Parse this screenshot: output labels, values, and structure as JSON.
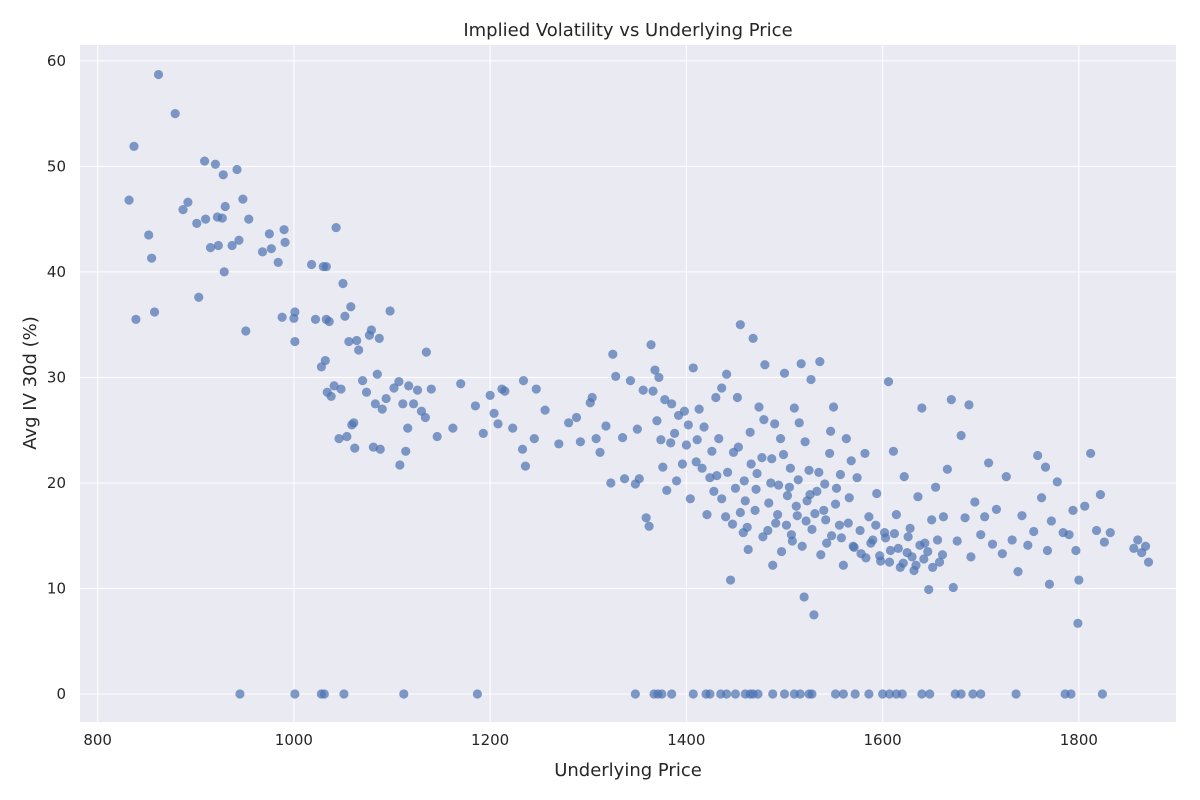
{
  "chart_data": {
    "type": "scatter",
    "title": "Implied Volatility vs Underlying Price",
    "xlabel": "Underlying Price",
    "ylabel": "Avg IV 30d (%)",
    "xlim": [
      782,
      1899
    ],
    "ylim": [
      -2.65,
      61.5
    ],
    "xticks": [
      800,
      1000,
      1200,
      1400,
      1600,
      1800
    ],
    "yticks": [
      0,
      10,
      20,
      30,
      40,
      50,
      60
    ],
    "grid": true,
    "colors": {
      "background": "#eaeaf2",
      "grid": "#ffffff",
      "marker": "#4c72b0"
    },
    "marker_alpha": 0.7,
    "points": [
      [
        832,
        46.8
      ],
      [
        837,
        51.9
      ],
      [
        839,
        35.5
      ],
      [
        852,
        43.5
      ],
      [
        855,
        41.3
      ],
      [
        858,
        36.2
      ],
      [
        862,
        58.7
      ],
      [
        879,
        55.0
      ],
      [
        887,
        45.9
      ],
      [
        892,
        46.6
      ],
      [
        901,
        44.6
      ],
      [
        903,
        37.6
      ],
      [
        909,
        50.5
      ],
      [
        910,
        45.0
      ],
      [
        915,
        42.3
      ],
      [
        920,
        50.2
      ],
      [
        922,
        45.2
      ],
      [
        923,
        42.5
      ],
      [
        927,
        45.1
      ],
      [
        928,
        49.2
      ],
      [
        929,
        40.0
      ],
      [
        930,
        46.2
      ],
      [
        937,
        42.5
      ],
      [
        942,
        49.7
      ],
      [
        944,
        43.0
      ],
      [
        948,
        46.9
      ],
      [
        951,
        34.4
      ],
      [
        954,
        45.0
      ],
      [
        945,
        0
      ],
      [
        968,
        41.9
      ],
      [
        975,
        43.6
      ],
      [
        977,
        42.2
      ],
      [
        984,
        40.9
      ],
      [
        988,
        35.7
      ],
      [
        990,
        44.0
      ],
      [
        991,
        42.8
      ],
      [
        1000,
        35.6
      ],
      [
        1001,
        36.2
      ],
      [
        1001,
        33.4
      ],
      [
        1001,
        0
      ],
      [
        1018,
        40.7
      ],
      [
        1022,
        35.5
      ],
      [
        1028,
        31.0
      ],
      [
        1030,
        40.5
      ],
      [
        1032,
        31.6
      ],
      [
        1033,
        40.5
      ],
      [
        1034,
        28.6
      ],
      [
        1033,
        35.5
      ],
      [
        1036,
        35.3
      ],
      [
        1038,
        28.2
      ],
      [
        1041,
        29.2
      ],
      [
        1043,
        44.2
      ],
      [
        1046,
        24.2
      ],
      [
        1048,
        28.9
      ],
      [
        1050,
        38.9
      ],
      [
        1052,
        35.8
      ],
      [
        1054,
        24.4
      ],
      [
        1056,
        33.4
      ],
      [
        1058,
        36.7
      ],
      [
        1059,
        25.5
      ],
      [
        1061,
        25.7
      ],
      [
        1062,
        23.3
      ],
      [
        1064,
        33.5
      ],
      [
        1066,
        32.6
      ],
      [
        1070,
        29.7
      ],
      [
        1074,
        28.6
      ],
      [
        1077,
        34.0
      ],
      [
        1079,
        34.5
      ],
      [
        1081,
        23.4
      ],
      [
        1083,
        27.5
      ],
      [
        1085,
        30.3
      ],
      [
        1087,
        33.7
      ],
      [
        1088,
        23.2
      ],
      [
        1090,
        27.0
      ],
      [
        1094,
        28.0
      ],
      [
        1098,
        36.3
      ],
      [
        1102,
        29.0
      ],
      [
        1107,
        29.6
      ],
      [
        1108,
        21.7
      ],
      [
        1111,
        27.5
      ],
      [
        1114,
        23.0
      ],
      [
        1116,
        25.2
      ],
      [
        1117,
        29.2
      ],
      [
        1122,
        27.5
      ],
      [
        1126,
        28.8
      ],
      [
        1130,
        26.8
      ],
      [
        1134,
        26.2
      ],
      [
        1135,
        32.4
      ],
      [
        1140,
        28.9
      ],
      [
        1146,
        24.4
      ],
      [
        1028,
        0
      ],
      [
        1031,
        0
      ],
      [
        1051,
        0
      ],
      [
        1112,
        0
      ],
      [
        1187,
        0
      ],
      [
        1162,
        25.2
      ],
      [
        1170,
        29.4
      ],
      [
        1185,
        27.3
      ],
      [
        1193,
        24.7
      ],
      [
        1200,
        28.3
      ],
      [
        1204,
        26.6
      ],
      [
        1208,
        25.6
      ],
      [
        1212,
        28.9
      ],
      [
        1215,
        28.7
      ],
      [
        1223,
        25.2
      ],
      [
        1233,
        23.2
      ],
      [
        1234,
        29.7
      ],
      [
        1236,
        21.6
      ],
      [
        1245,
        24.2
      ],
      [
        1247,
        28.9
      ],
      [
        1256,
        26.9
      ],
      [
        1270,
        23.7
      ],
      [
        1280,
        25.7
      ],
      [
        1288,
        26.2
      ],
      [
        1292,
        23.9
      ],
      [
        1302,
        27.6
      ],
      [
        1304,
        28.1
      ],
      [
        1308,
        24.2
      ],
      [
        1312,
        22.9
      ],
      [
        1318,
        25.4
      ],
      [
        1323,
        20.0
      ],
      [
        1325,
        32.2
      ],
      [
        1328,
        30.1
      ],
      [
        1335,
        24.3
      ],
      [
        1337,
        20.4
      ],
      [
        1343,
        29.7
      ],
      [
        1348,
        19.9
      ],
      [
        1350,
        25.1
      ],
      [
        1352,
        20.4
      ],
      [
        1356,
        28.8
      ],
      [
        1359,
        16.7
      ],
      [
        1362,
        15.9
      ],
      [
        1364,
        33.1
      ],
      [
        1366,
        28.7
      ],
      [
        1368,
        30.7
      ],
      [
        1370,
        25.9
      ],
      [
        1372,
        30.0
      ],
      [
        1376,
        21.5
      ],
      [
        1380,
        19.3
      ],
      [
        1385,
        27.5
      ],
      [
        1388,
        24.7
      ],
      [
        1392,
        26.4
      ],
      [
        1396,
        21.8
      ],
      [
        1400,
        23.6
      ],
      [
        1404,
        18.5
      ],
      [
        1407,
        30.9
      ],
      [
        1410,
        22.0
      ],
      [
        1413,
        27.0
      ],
      [
        1418,
        25.3
      ],
      [
        1421,
        17.0
      ],
      [
        1424,
        20.5
      ],
      [
        1428,
        19.2
      ],
      [
        1430,
        28.1
      ],
      [
        1433,
        24.2
      ],
      [
        1436,
        29.0
      ],
      [
        1440,
        16.8
      ],
      [
        1441,
        30.3
      ],
      [
        1445,
        10.8
      ],
      [
        1448,
        22.9
      ],
      [
        1450,
        19.5
      ],
      [
        1452,
        28.1
      ],
      [
        1455,
        35.0
      ],
      [
        1458,
        15.3
      ],
      [
        1460,
        18.3
      ],
      [
        1463,
        13.7
      ],
      [
        1466,
        21.8
      ],
      [
        1468,
        33.7
      ],
      [
        1470,
        17.4
      ],
      [
        1474,
        27.2
      ],
      [
        1477,
        22.4
      ],
      [
        1480,
        31.2
      ],
      [
        1483,
        15.5
      ],
      [
        1486,
        20.0
      ],
      [
        1488,
        12.2
      ],
      [
        1490,
        25.6
      ],
      [
        1493,
        17.0
      ],
      [
        1496,
        24.2
      ],
      [
        1500,
        30.4
      ],
      [
        1502,
        16.0
      ],
      [
        1505,
        19.6
      ],
      [
        1508,
        14.5
      ],
      [
        1510,
        27.1
      ],
      [
        1512,
        17.8
      ],
      [
        1515,
        25.7
      ],
      [
        1517,
        31.3
      ],
      [
        1520,
        9.2
      ],
      [
        1522,
        16.4
      ],
      [
        1525,
        21.2
      ],
      [
        1527,
        29.8
      ],
      [
        1530,
        7.5
      ],
      [
        1533,
        19.2
      ],
      [
        1536,
        31.5
      ],
      [
        1540,
        17.4
      ],
      [
        1543,
        14.3
      ],
      [
        1546,
        22.8
      ],
      [
        1550,
        27.2
      ],
      [
        1553,
        19.5
      ],
      [
        1556,
        16.0
      ],
      [
        1560,
        12.2
      ],
      [
        1563,
        24.2
      ],
      [
        1566,
        18.6
      ],
      [
        1570,
        14.0
      ],
      [
        1574,
        20.5
      ],
      [
        1578,
        13.3
      ],
      [
        1582,
        22.8
      ],
      [
        1586,
        16.8
      ],
      [
        1590,
        14.6
      ],
      [
        1594,
        19.0
      ],
      [
        1598,
        12.6
      ],
      [
        1602,
        15.3
      ],
      [
        1606,
        29.6
      ],
      [
        1608,
        13.6
      ],
      [
        1611,
        23.0
      ],
      [
        1614,
        17.0
      ],
      [
        1618,
        12.0
      ],
      [
        1622,
        20.6
      ],
      [
        1625,
        13.4
      ],
      [
        1628,
        15.7
      ],
      [
        1632,
        11.7
      ],
      [
        1636,
        18.7
      ],
      [
        1640,
        27.1
      ],
      [
        1643,
        14.3
      ],
      [
        1647,
        9.9
      ],
      [
        1650,
        16.5
      ],
      [
        1654,
        19.6
      ],
      [
        1658,
        12.5
      ],
      [
        1662,
        16.8
      ],
      [
        1666,
        21.3
      ],
      [
        1670,
        27.9
      ],
      [
        1672,
        10.1
      ],
      [
        1676,
        14.5
      ],
      [
        1680,
        24.5
      ],
      [
        1684,
        16.7
      ],
      [
        1688,
        27.4
      ],
      [
        1690,
        13.0
      ],
      [
        1694,
        18.2
      ],
      [
        1700,
        15.1
      ],
      [
        1704,
        16.8
      ],
      [
        1708,
        21.9
      ],
      [
        1712,
        14.2
      ],
      [
        1716,
        17.5
      ],
      [
        1722,
        13.3
      ],
      [
        1726,
        20.6
      ],
      [
        1732,
        14.6
      ],
      [
        1738,
        11.6
      ],
      [
        1742,
        16.9
      ],
      [
        1748,
        14.1
      ],
      [
        1754,
        15.4
      ],
      [
        1758,
        22.6
      ],
      [
        1762,
        18.6
      ],
      [
        1766,
        21.5
      ],
      [
        1768,
        13.6
      ],
      [
        1770,
        10.4
      ],
      [
        1772,
        16.4
      ],
      [
        1778,
        20.1
      ],
      [
        1784,
        15.3
      ],
      [
        1790,
        15.1
      ],
      [
        1794,
        17.4
      ],
      [
        1797,
        13.6
      ],
      [
        1799,
        6.7
      ],
      [
        1800,
        10.8
      ],
      [
        1806,
        17.8
      ],
      [
        1812,
        22.8
      ],
      [
        1818,
        15.5
      ],
      [
        1822,
        18.9
      ],
      [
        1826,
        14.4
      ],
      [
        1832,
        15.3
      ],
      [
        1856,
        13.8
      ],
      [
        1860,
        14.6
      ],
      [
        1864,
        13.4
      ],
      [
        1868,
        14.0
      ],
      [
        1871,
        12.5
      ],
      [
        1455,
        17.2
      ],
      [
        1462,
        15.8
      ],
      [
        1471,
        19.4
      ],
      [
        1478,
        14.9
      ],
      [
        1484,
        18.1
      ],
      [
        1491,
        16.2
      ],
      [
        1497,
        13.5
      ],
      [
        1503,
        18.8
      ],
      [
        1507,
        15.1
      ],
      [
        1513,
        16.9
      ],
      [
        1518,
        14.0
      ],
      [
        1523,
        18.3
      ],
      [
        1528,
        15.6
      ],
      [
        1531,
        17.1
      ],
      [
        1537,
        13.2
      ],
      [
        1542,
        16.5
      ],
      [
        1548,
        15.0
      ],
      [
        1552,
        18.0
      ],
      [
        1558,
        14.8
      ],
      [
        1565,
        16.2
      ],
      [
        1571,
        13.9
      ],
      [
        1577,
        15.5
      ],
      [
        1583,
        12.9
      ],
      [
        1588,
        14.3
      ],
      [
        1593,
        16.0
      ],
      [
        1597,
        13.1
      ],
      [
        1603,
        14.8
      ],
      [
        1607,
        12.5
      ],
      [
        1612,
        15.2
      ],
      [
        1616,
        13.8
      ],
      [
        1621,
        12.4
      ],
      [
        1626,
        14.9
      ],
      [
        1630,
        13.0
      ],
      [
        1634,
        12.2
      ],
      [
        1638,
        14.1
      ],
      [
        1642,
        12.8
      ],
      [
        1646,
        13.5
      ],
      [
        1651,
        12.0
      ],
      [
        1656,
        14.6
      ],
      [
        1661,
        13.2
      ],
      [
        1436,
        18.5
      ],
      [
        1442,
        21.0
      ],
      [
        1447,
        16.1
      ],
      [
        1453,
        23.4
      ],
      [
        1459,
        20.2
      ],
      [
        1465,
        24.8
      ],
      [
        1472,
        20.9
      ],
      [
        1479,
        26.0
      ],
      [
        1487,
        22.3
      ],
      [
        1494,
        19.8
      ],
      [
        1499,
        22.7
      ],
      [
        1506,
        21.4
      ],
      [
        1514,
        20.3
      ],
      [
        1521,
        23.9
      ],
      [
        1526,
        18.9
      ],
      [
        1535,
        21.0
      ],
      [
        1541,
        19.9
      ],
      [
        1547,
        24.9
      ],
      [
        1557,
        20.8
      ],
      [
        1568,
        22.1
      ],
      [
        1398,
        26.8
      ],
      [
        1402,
        25.5
      ],
      [
        1411,
        24.1
      ],
      [
        1416,
        21.4
      ],
      [
        1426,
        23.0
      ],
      [
        1431,
        20.7
      ],
      [
        1384,
        23.8
      ],
      [
        1390,
        20.2
      ],
      [
        1374,
        24.1
      ],
      [
        1378,
        27.9
      ],
      [
        1348,
        0
      ],
      [
        1367,
        0
      ],
      [
        1371,
        0
      ],
      [
        1375,
        0
      ],
      [
        1385,
        0
      ],
      [
        1407,
        0
      ],
      [
        1420,
        0
      ],
      [
        1424,
        0
      ],
      [
        1435,
        0
      ],
      [
        1441,
        0
      ],
      [
        1450,
        0
      ],
      [
        1460,
        0
      ],
      [
        1465,
        0
      ],
      [
        1468,
        0
      ],
      [
        1473,
        0
      ],
      [
        1488,
        0
      ],
      [
        1500,
        0
      ],
      [
        1510,
        0
      ],
      [
        1516,
        0
      ],
      [
        1525,
        0
      ],
      [
        1528,
        0
      ],
      [
        1552,
        0
      ],
      [
        1560,
        0
      ],
      [
        1572,
        0
      ],
      [
        1586,
        0
      ],
      [
        1600,
        0
      ],
      [
        1607,
        0
      ],
      [
        1614,
        0
      ],
      [
        1620,
        0
      ],
      [
        1640,
        0
      ],
      [
        1648,
        0
      ],
      [
        1674,
        0
      ],
      [
        1680,
        0
      ],
      [
        1692,
        0
      ],
      [
        1700,
        0
      ],
      [
        1736,
        0
      ],
      [
        1786,
        0
      ],
      [
        1792,
        0
      ],
      [
        1824,
        0
      ]
    ]
  }
}
